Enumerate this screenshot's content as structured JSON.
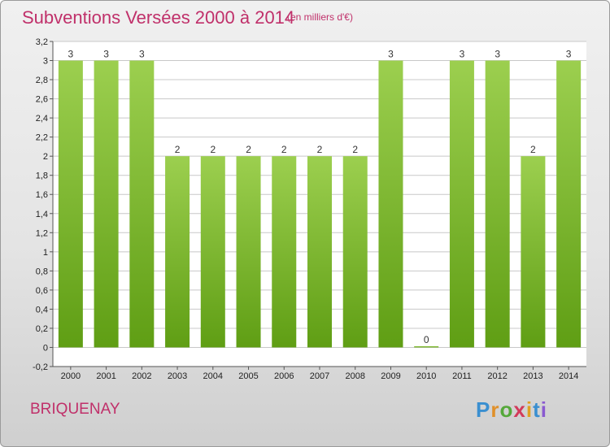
{
  "header": {
    "title": "Subventions Versées 2000 à 2014",
    "subtitle": "(en milliers d'€)"
  },
  "footer": {
    "place": "BRIQUENAY",
    "logo": "Proxiti"
  },
  "colors": {
    "title": "#c0306a",
    "bar_light": "#9ccf4f",
    "bar_dark": "#5f9e14",
    "grid": "#c8c8c8"
  },
  "chart_data": {
    "type": "bar",
    "categories": [
      "2000",
      "2001",
      "2002",
      "2003",
      "2004",
      "2005",
      "2006",
      "2007",
      "2008",
      "2009",
      "2010",
      "2011",
      "2012",
      "2013",
      "2014"
    ],
    "values": [
      3,
      3,
      3,
      2,
      2,
      2,
      2,
      2,
      2,
      3,
      0,
      3,
      3,
      2,
      3
    ],
    "data_labels": [
      "3",
      "3",
      "3",
      "2",
      "2",
      "2",
      "2",
      "2",
      "2",
      "3",
      "0",
      "3",
      "3",
      "2",
      "3"
    ],
    "yticks": [
      -0.2,
      0,
      0.2,
      0.4,
      0.6,
      0.8,
      1,
      1.2,
      1.4,
      1.6,
      1.8,
      2,
      2.2,
      2.4,
      2.6,
      2.8,
      3,
      3.2
    ],
    "ytick_labels": [
      "-0,2",
      "0",
      "0,2",
      "0,4",
      "0,6",
      "0,8",
      "1",
      "1,2",
      "1,4",
      "1,6",
      "1,8",
      "2",
      "2,2",
      "2,4",
      "2,6",
      "2,8",
      "3",
      "3,2"
    ],
    "ylim": [
      -0.2,
      3.2
    ],
    "grid": true,
    "legend": "none"
  }
}
